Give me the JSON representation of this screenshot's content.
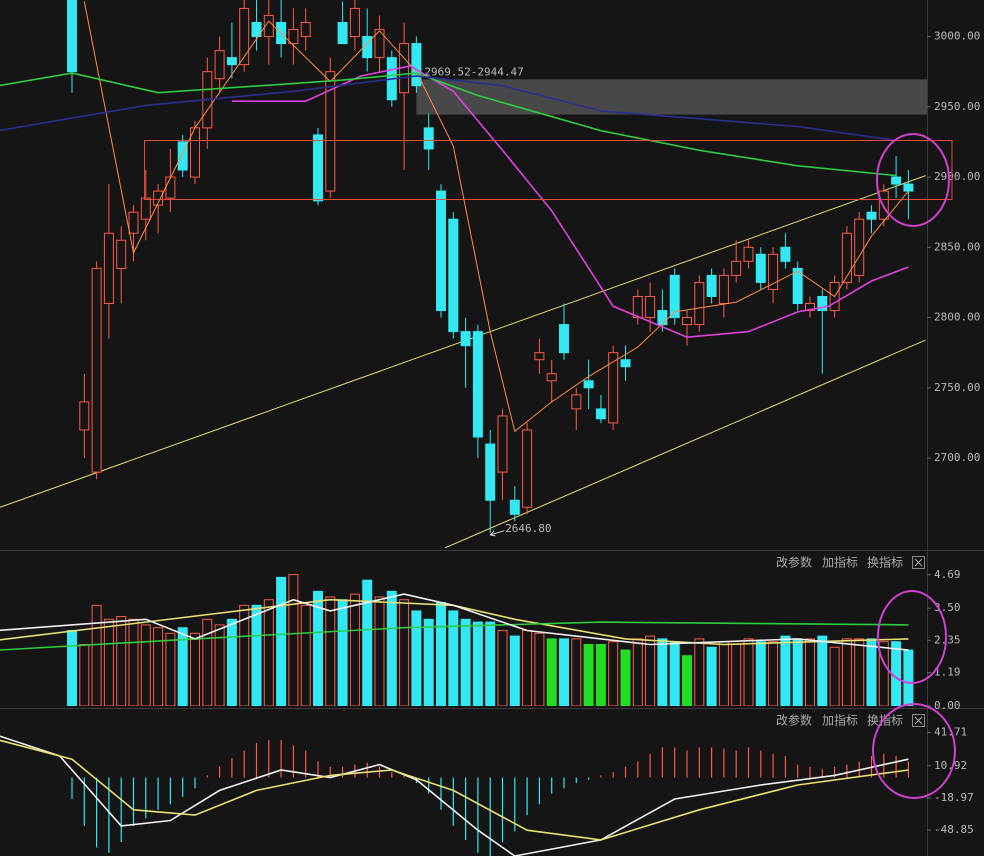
{
  "chart_data": [
    {
      "type": "candlestick",
      "up_color": "#ff5a45",
      "down_color": "#33e8f2",
      "ylim": [
        2636,
        3026
      ],
      "yticks": [
        {
          "value": 3000,
          "label": "3000.00"
        },
        {
          "value": 2950,
          "label": "2950.00"
        },
        {
          "value": 2900,
          "label": "2900.00"
        },
        {
          "value": 2850,
          "label": "2850.00"
        },
        {
          "value": 2800,
          "label": "2800.00"
        },
        {
          "value": 2750,
          "label": "2750.00"
        },
        {
          "value": 2700,
          "label": "2700.00"
        }
      ],
      "candles": [
        [
          3030,
          3040,
          2960,
          2975
        ],
        [
          2720,
          2760,
          2700,
          2740
        ],
        [
          2690,
          2840,
          2685,
          2835
        ],
        [
          2810,
          2895,
          2785,
          2860
        ],
        [
          2835,
          2865,
          2810,
          2855
        ],
        [
          2860,
          2880,
          2840,
          2875
        ],
        [
          2870,
          2905,
          2855,
          2885
        ],
        [
          2880,
          2895,
          2860,
          2890
        ],
        [
          2885,
          2920,
          2875,
          2900
        ],
        [
          2925,
          2930,
          2900,
          2905
        ],
        [
          2900,
          2940,
          2895,
          2935
        ],
        [
          2935,
          2985,
          2920,
          2975
        ],
        [
          2970,
          3000,
          2960,
          2990
        ],
        [
          2985,
          3010,
          2970,
          2980
        ],
        [
          2980,
          3030,
          2975,
          3020
        ],
        [
          3010,
          3040,
          2990,
          3000
        ],
        [
          3000,
          3030,
          2980,
          3015
        ],
        [
          3010,
          3030,
          2985,
          2995
        ],
        [
          2995,
          3020,
          2980,
          3005
        ],
        [
          3000,
          3020,
          2990,
          3010
        ],
        [
          2930,
          2935,
          2880,
          2883
        ],
        [
          2890,
          2985,
          2885,
          2975
        ],
        [
          3010,
          3025,
          2995,
          2995
        ],
        [
          3000,
          3030,
          2990,
          3020
        ],
        [
          3000,
          3020,
          2975,
          2985
        ],
        [
          2985,
          3015,
          2975,
          3005
        ],
        [
          2985,
          2990,
          2950,
          2955
        ],
        [
          2960,
          3010,
          2905,
          2995
        ],
        [
          2995,
          3000,
          2960,
          2965
        ],
        [
          2935,
          2945,
          2905,
          2920
        ],
        [
          2890,
          2895,
          2800,
          2805
        ],
        [
          2870,
          2875,
          2785,
          2790
        ],
        [
          2790,
          2800,
          2750,
          2780
        ],
        [
          2790,
          2795,
          2700,
          2715
        ],
        [
          2710,
          2720,
          2646.8,
          2670
        ],
        [
          2690,
          2735,
          2670,
          2730
        ],
        [
          2670,
          2680,
          2655,
          2660
        ],
        [
          2665,
          2725,
          2660,
          2720
        ],
        [
          2770,
          2785,
          2760,
          2775
        ],
        [
          2755,
          2770,
          2740,
          2760
        ],
        [
          2795,
          2810,
          2770,
          2775
        ],
        [
          2735,
          2750,
          2720,
          2745
        ],
        [
          2755,
          2770,
          2735,
          2750
        ],
        [
          2735,
          2745,
          2725,
          2728
        ],
        [
          2725,
          2780,
          2720,
          2775
        ],
        [
          2770,
          2780,
          2755,
          2765
        ],
        [
          2800,
          2820,
          2795,
          2815
        ],
        [
          2800,
          2825,
          2790,
          2815
        ],
        [
          2805,
          2820,
          2790,
          2795
        ],
        [
          2830,
          2835,
          2795,
          2800
        ],
        [
          2795,
          2805,
          2780,
          2800
        ],
        [
          2795,
          2830,
          2790,
          2825
        ],
        [
          2830,
          2835,
          2810,
          2815
        ],
        [
          2810,
          2835,
          2800,
          2830
        ],
        [
          2830,
          2855,
          2825,
          2840
        ],
        [
          2840,
          2855,
          2835,
          2850
        ],
        [
          2845,
          2850,
          2820,
          2825
        ],
        [
          2820,
          2850,
          2810,
          2845
        ],
        [
          2850,
          2860,
          2835,
          2840
        ],
        [
          2835,
          2840,
          2805,
          2810
        ],
        [
          2805,
          2815,
          2800,
          2810
        ],
        [
          2815,
          2820,
          2760,
          2805
        ],
        [
          2805,
          2830,
          2800,
          2825
        ],
        [
          2825,
          2865,
          2820,
          2860
        ],
        [
          2830,
          2875,
          2825,
          2870
        ],
        [
          2875,
          2880,
          2860,
          2870
        ],
        [
          2870,
          2895,
          2865,
          2890
        ],
        [
          2900,
          2915,
          2885,
          2895
        ],
        [
          2895,
          2905,
          2870,
          2890
        ]
      ],
      "low_label": "2646.80",
      "lines": [
        {
          "color": "#ff8c42",
          "x": [
            1,
            5,
            10,
            16,
            21,
            25,
            28,
            31,
            34,
            36,
            39,
            42,
            46,
            49,
            54,
            59,
            62,
            65,
            68
          ],
          "values": [
            3025,
            2846,
            2935,
            3011,
            2968,
            3004,
            2975,
            2922,
            2790,
            2719,
            2740,
            2758,
            2779,
            2804,
            2811,
            2833,
            2815,
            2858,
            2890
          ]
        },
        {
          "color": "#e040e0",
          "x": [
            13,
            19,
            23.5,
            27.5,
            31,
            35,
            39,
            44,
            50,
            55,
            59,
            61.5,
            65,
            68
          ],
          "values": [
            2954,
            2954,
            2972,
            2979,
            2961,
            2919,
            2876,
            2808,
            2786,
            2790,
            2804,
            2808,
            2826,
            2836
          ]
        },
        {
          "color": "#2ecc40",
          "x": [
            -6,
            0,
            7,
            22,
            28,
            33,
            43,
            51,
            59,
            67
          ],
          "values": [
            2965,
            2974,
            2960,
            2969,
            2974,
            2958,
            2933,
            2919,
            2908,
            2901
          ]
        },
        {
          "color": "#2a2f8f",
          "x": [
            -6,
            6,
            18,
            28,
            35,
            43,
            59,
            67
          ],
          "values": [
            2933,
            2951,
            2961,
            2972,
            2965,
            2947,
            2936,
            2926
          ]
        }
      ],
      "trendlines": [
        {
          "color": "#e8e070",
          "x": [
            -5.85,
            69.4
          ],
          "values": [
            2665,
            2901
          ]
        },
        {
          "color": "#e8e070",
          "x": [
            30.3,
            69.4
          ],
          "values": [
            2636,
            2784
          ]
        }
      ],
      "zones": [
        {
          "label": "2969.52-2944.47",
          "from": 2944.47,
          "to": 2969.52,
          "start": 28,
          "color": "#5a5a5a"
        },
        {
          "from": 2884,
          "to": 2926,
          "start": 5.9,
          "color": "#e0503c"
        }
      ]
    },
    {
      "type": "bar",
      "menu": [
        "改参数",
        "加指标",
        "换指标"
      ],
      "ylim": [
        0,
        5.4
      ],
      "yticks": [
        4.69,
        {
          "value": 3.5,
          "label": "3.50"
        },
        2.35,
        1.19,
        {
          "value": 0,
          "label": "0.00"
        }
      ],
      "values": [
        2.7,
        2.2,
        3.6,
        3.1,
        3.2,
        3.1,
        2.9,
        2.8,
        2.6,
        2.8,
        2.6,
        3.1,
        2.9,
        3.1,
        3.6,
        3.6,
        3.8,
        4.6,
        4.7,
        3.6,
        4.1,
        3.9,
        3.8,
        4.0,
        4.5,
        3.9,
        4.1,
        3.8,
        3.4,
        3.1,
        3.7,
        3.4,
        3.1,
        3.0,
        3.0,
        2.7,
        2.5,
        2.7,
        2.6,
        2.4,
        2.4,
        2.4,
        2.2,
        2.2,
        2.3,
        2.0,
        2.4,
        2.5,
        2.4,
        2.3,
        1.8,
        2.4,
        2.1,
        2.3,
        2.2,
        2.4,
        2.3,
        2.3,
        2.5,
        2.4,
        2.4,
        2.5,
        2.1,
        2.4,
        2.4,
        2.4,
        2.3,
        2.3,
        2.0
      ],
      "hollow_color": "#ff5a45",
      "colors": [
        "#33e8f2",
        "#ff5a45",
        "#ff5a45",
        "#ff5a45",
        "#ff5a45",
        "#ff5a45",
        "#ff5a45",
        "#ff5a45",
        "#ff5a45",
        "#33e8f2",
        "#ff5a45",
        "#ff5a45",
        "#ff5a45",
        "#33e8f2",
        "#ff5a45",
        "#33e8f2",
        "#ff5a45",
        "#33e8f2",
        "#ff5a45",
        "#ff5a45",
        "#33e8f2",
        "#ff5a45",
        "#33e8f2",
        "#ff5a45",
        "#33e8f2",
        "#ff5a45",
        "#33e8f2",
        "#ff5a45",
        "#33e8f2",
        "#33e8f2",
        "#33e8f2",
        "#33e8f2",
        "#33e8f2",
        "#33e8f2",
        "#33e8f2",
        "#ff5a45",
        "#33e8f2",
        "#ff5a45",
        "#ff5a45",
        "#22dd22",
        "#33e8f2",
        "#ff5a45",
        "#22dd22",
        "#22dd22",
        "#ff5a45",
        "#22dd22",
        "#ff5a45",
        "#ff5a45",
        "#33e8f2",
        "#33e8f2",
        "#22dd22",
        "#ff5a45",
        "#33e8f2",
        "#ff5a45",
        "#ff5a45",
        "#ff5a45",
        "#33e8f2",
        "#ff5a45",
        "#33e8f2",
        "#33e8f2",
        "#ff5a45",
        "#33e8f2",
        "#ff5a45",
        "#ff5a45",
        "#ff5a45",
        "#33e8f2",
        "#ff5a45",
        "#33e8f2",
        "#33e8f2"
      ],
      "lines": [
        {
          "color": "#e8e070",
          "x": [
            -6,
            21,
            31,
            36,
            45,
            53,
            68
          ],
          "values": [
            2.36,
            3.8,
            3.6,
            3.1,
            2.4,
            2.2,
            2.4
          ]
        },
        {
          "color": "#2ecc40",
          "x": [
            -6,
            10,
            27,
            43,
            68
          ],
          "values": [
            2.0,
            2.4,
            2.8,
            3.0,
            2.9
          ]
        },
        {
          "color": "#f0f0f0",
          "x": [
            -6,
            6,
            10,
            18,
            21,
            27,
            31,
            37,
            47,
            59,
            68
          ],
          "values": [
            2.7,
            3.1,
            2.4,
            3.8,
            3.4,
            4.0,
            3.6,
            2.7,
            2.2,
            2.4,
            2.0
          ]
        }
      ]
    },
    {
      "type": "macd",
      "menu": [
        "改参数",
        "加指标",
        "换指标"
      ],
      "ylim": [
        -73,
        60
      ],
      "yticks": [
        41.71,
        10.92,
        -18.97,
        -48.85
      ],
      "up_color": "#ff5a45",
      "down_color": "#33e8f2",
      "values": [
        -20,
        -45,
        -65,
        -70,
        -60,
        -45,
        -38,
        -30,
        -25,
        -18,
        -10,
        2,
        10,
        18,
        25,
        32,
        35,
        35,
        30,
        25,
        15,
        10,
        10,
        12,
        14,
        10,
        5,
        2,
        -5,
        -15,
        -30,
        -45,
        -58,
        -70,
        -75,
        -60,
        -50,
        -35,
        -25,
        -15,
        -10,
        -5,
        -2,
        2,
        5,
        10,
        15,
        22,
        28,
        28,
        25,
        28,
        28,
        27,
        25,
        28,
        25,
        22,
        20,
        12,
        10,
        8,
        10,
        12,
        15,
        20,
        22,
        20,
        15
      ],
      "lines": [
        {
          "color": "#f0f0f0",
          "x": [
            -6,
            -1,
            4,
            8,
            12,
            17,
            21,
            25,
            28,
            33,
            36,
            43,
            49,
            56,
            62,
            68
          ],
          "values": [
            39,
            20,
            -45,
            -40,
            -12,
            7,
            0,
            12,
            -2,
            -49,
            -73,
            -58,
            -20,
            -7,
            2,
            17
          ]
        },
        {
          "color": "#e8e070",
          "x": [
            -6,
            0,
            5,
            10,
            15,
            21,
            26,
            31,
            37,
            43,
            51,
            59,
            68
          ],
          "values": [
            35,
            17,
            -30,
            -35,
            -12,
            2,
            7,
            -12,
            -49,
            -58,
            -30,
            -7,
            7
          ]
        }
      ]
    }
  ]
}
